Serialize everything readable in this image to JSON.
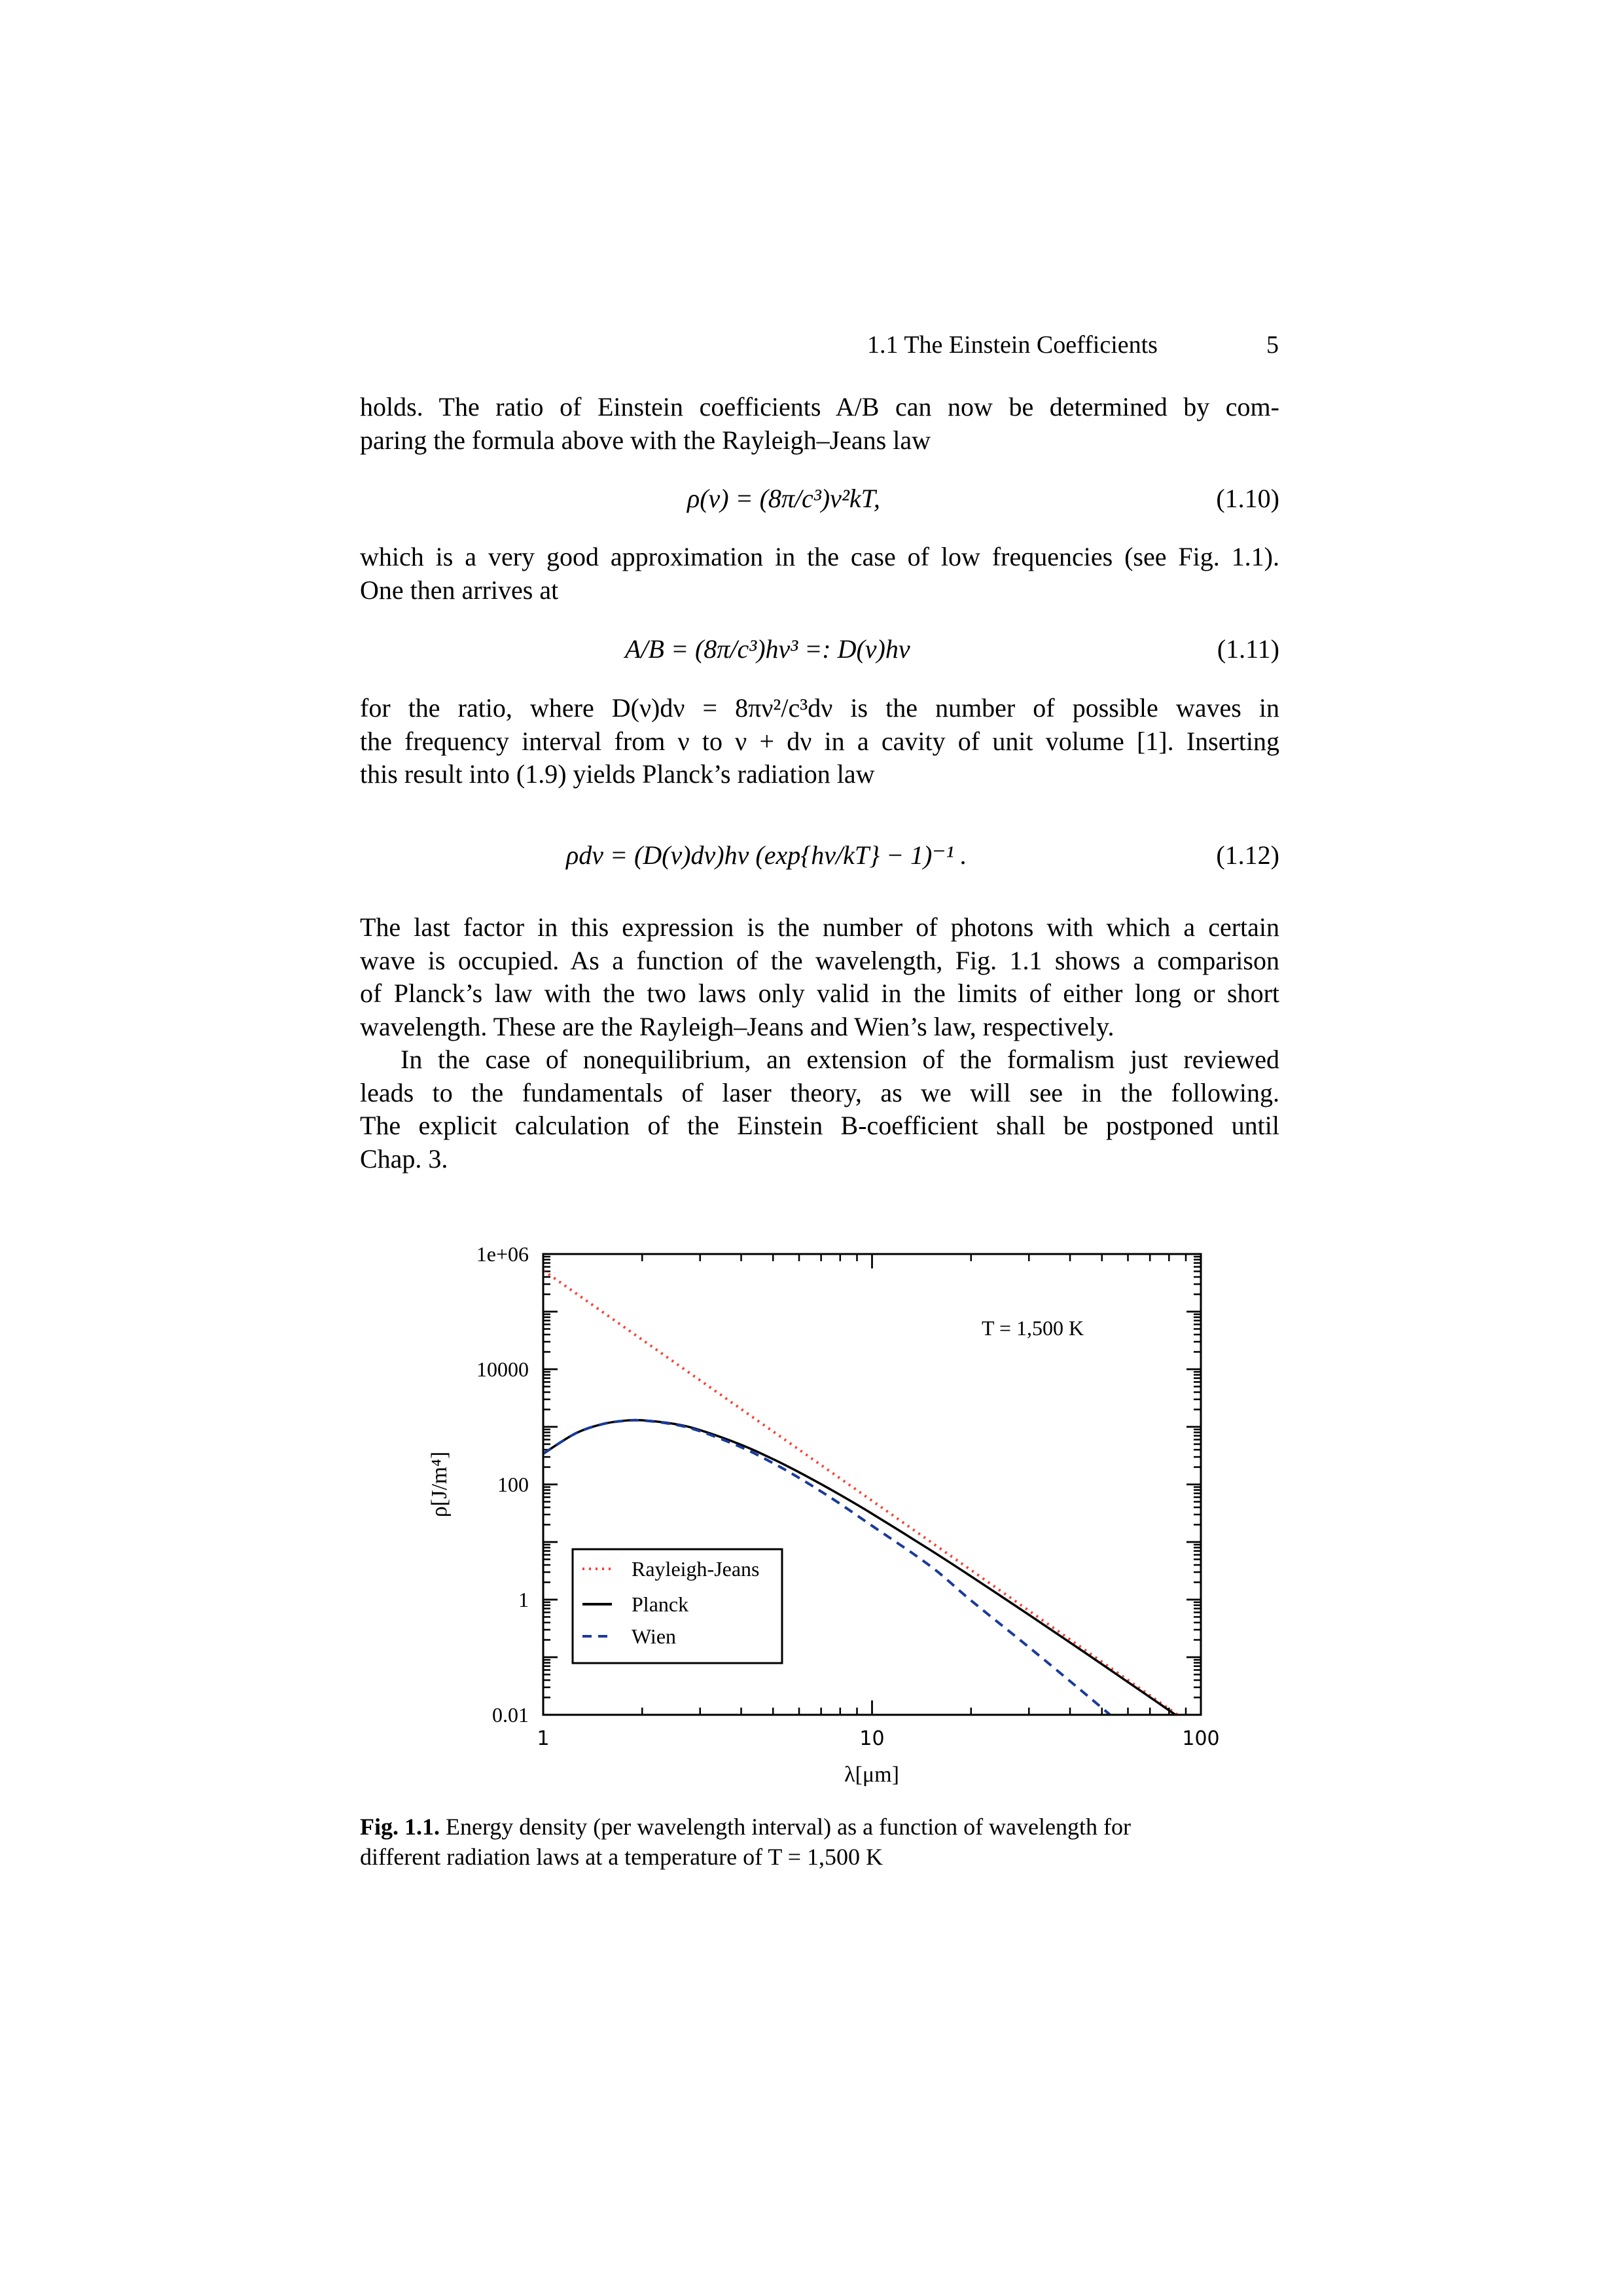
{
  "header": {
    "section": "1.1  The Einstein Coefficients",
    "page_number": "5"
  },
  "paragraphs": [
    {
      "lines": [
        "holds. The ratio of Einstein coefficients A/B can now be determined by com-",
        "paring the formula above with the Rayleigh–Jeans law"
      ]
    },
    {
      "lines": [
        "which is a very good approximation in the case of low frequencies (see Fig. 1.1).",
        "One then arrives at"
      ]
    },
    {
      "lines": [
        "for the ratio, where D(ν)dν = 8πν²/c³dν is the number of possible waves in",
        "the frequency interval from ν to ν + dν in a cavity of unit volume [1]. Inserting",
        "this result into (1.9) yields Planck’s radiation law"
      ]
    },
    {
      "lines": [
        "The last factor in this expression is the number of photons with which a certain",
        "wave is occupied. As a function of the wavelength, Fig. 1.1 shows a comparison",
        "of Planck’s law with the two laws only valid in the limits of either long or short",
        "wavelength. These are the Rayleigh–Jeans and Wien’s law, respectively."
      ]
    },
    {
      "lines": [
        "In the case of nonequilibrium, an extension of the formalism just reviewed",
        "leads to the fundamentals of laser theory, as we will see in the following.",
        "The explicit calculation of the Einstein B-coefficient shall be postponed until",
        "Chap. 3."
      ]
    }
  ],
  "equations": [
    {
      "text": "ρ(ν) = (8π/c³)ν²kT,",
      "number": "(1.10)"
    },
    {
      "text": "A/B = (8π/c³)hν³ =: D(ν)hν",
      "number": "(1.11)"
    },
    {
      "text": "ρdν = (D(ν)dν)hν (exp{hν/kT} − 1)⁻¹ .",
      "number": "(1.12)"
    }
  ],
  "caption": {
    "label": "Fig. 1.1.",
    "text": "Energy density (per wavelength interval) as a function of wavelength for",
    "text2": "different radiation laws at a temperature of T = 1,500 K"
  },
  "chart_data": {
    "type": "line",
    "xlabel": "λ[μm]",
    "ylabel": "ρ[J/m⁴]",
    "annotation": "T = 1,500 K",
    "xscale": "log",
    "yscale": "log",
    "xlim": [
      1,
      100
    ],
    "ylim": [
      0.01,
      1000000
    ],
    "xticks": [
      "1",
      "10",
      "100"
    ],
    "yticks": [
      "0.01",
      "1",
      "100",
      "10000",
      "1e+06"
    ],
    "legend_position": "bottom-left",
    "series": [
      {
        "name": "Rayleigh-Jeans",
        "style": "dotted",
        "color": "#ff3b30",
        "x": [
          1,
          2,
          5,
          10,
          20,
          50,
          85
        ],
        "y": [
          520450,
          32528,
          832.7,
          52.05,
          3.253,
          0.08327,
          0.00997
        ]
      },
      {
        "name": "Planck",
        "style": "solid",
        "color": "#000000",
        "x": [
          1,
          1.25,
          1.5,
          1.75,
          2,
          2.5,
          3,
          4,
          5,
          6,
          7,
          8,
          10,
          15,
          20,
          30,
          40,
          50,
          70,
          85
        ],
        "y": [
          341,
          760,
          1100,
          1272,
          1300,
          1126,
          876,
          487.6,
          275,
          162.7,
          101.1,
          65.76,
          31.0,
          7.34,
          2.535,
          0.5454,
          0.1799,
          0.07554,
          0.02023,
          0.009419
        ]
      },
      {
        "name": "Wien",
        "style": "dashed",
        "color": "#1a3a9a",
        "x": [
          1,
          1.25,
          1.5,
          1.75,
          2,
          2.5,
          3,
          4,
          5,
          6,
          7,
          8,
          10,
          15,
          20,
          30,
          40,
          50,
          53
        ],
        "y": [
          341,
          760.3,
          1098,
          1267,
          1289,
          1102,
          840,
          443,
          234.6,
          129.8,
          75.4,
          45.93,
          19.13,
          3.87,
          0.966,
          0.1492,
          0.03836,
          0.0132,
          0.00996
        ]
      }
    ]
  }
}
